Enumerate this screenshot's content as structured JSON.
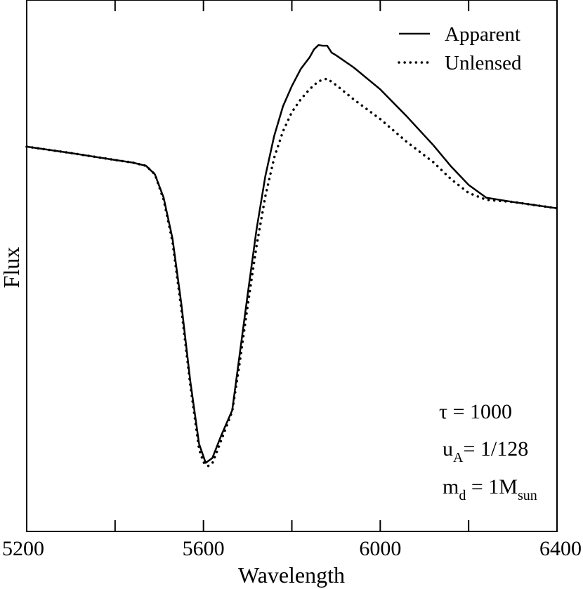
{
  "chart_data": {
    "type": "line",
    "xlabel": "Wavelength",
    "ylabel": "Flux",
    "xlim": [
      5200,
      6400
    ],
    "ylim": [
      0,
      1
    ],
    "x_ticks": [
      5200,
      5600,
      6000,
      6400
    ],
    "x_tick_labels": [
      "5200",
      "5600",
      "6000",
      "6400"
    ],
    "x_minor_ticks": [
      5400,
      5800,
      6200
    ],
    "y_tick_labels": [],
    "grid": false,
    "legend_position": "top-right",
    "series": [
      {
        "name": "Apparent",
        "style": "solid",
        "color": "#000000",
        "x": [
          5200,
          5300,
          5400,
          5440,
          5470,
          5490,
          5510,
          5530,
          5550,
          5570,
          5590,
          5605,
          5620,
          5640,
          5665,
          5680,
          5700,
          5720,
          5740,
          5760,
          5780,
          5800,
          5820,
          5840,
          5850,
          5860,
          5870,
          5880,
          5890,
          5900,
          5940,
          6000,
          6060,
          6120,
          6160,
          6200,
          6240,
          6300,
          6400
        ],
        "y": [
          0.724,
          0.712,
          0.699,
          0.694,
          0.688,
          0.672,
          0.628,
          0.551,
          0.428,
          0.284,
          0.165,
          0.129,
          0.138,
          0.18,
          0.228,
          0.321,
          0.446,
          0.568,
          0.669,
          0.744,
          0.8,
          0.838,
          0.87,
          0.892,
          0.907,
          0.915,
          0.914,
          0.914,
          0.901,
          0.896,
          0.873,
          0.832,
          0.781,
          0.727,
          0.687,
          0.652,
          0.628,
          0.62,
          0.608
        ]
      },
      {
        "name": "Unlensed",
        "style": "dotted",
        "color": "#000000",
        "x": [
          5200,
          5300,
          5400,
          5440,
          5470,
          5490,
          5510,
          5530,
          5550,
          5570,
          5590,
          5600,
          5610,
          5620,
          5640,
          5665,
          5680,
          5700,
          5720,
          5740,
          5760,
          5780,
          5800,
          5820,
          5840,
          5860,
          5880,
          5900,
          5940,
          6000,
          6060,
          6120,
          6160,
          6200,
          6240,
          6300,
          6400
        ],
        "y": [
          0.724,
          0.712,
          0.699,
          0.694,
          0.688,
          0.672,
          0.624,
          0.545,
          0.418,
          0.277,
          0.155,
          0.13,
          0.123,
          0.128,
          0.171,
          0.226,
          0.306,
          0.425,
          0.537,
          0.631,
          0.703,
          0.753,
          0.789,
          0.813,
          0.832,
          0.847,
          0.852,
          0.84,
          0.813,
          0.776,
          0.733,
          0.695,
          0.663,
          0.637,
          0.624,
          0.62,
          0.608
        ]
      }
    ],
    "annotations": {
      "tau": {
        "symbol": "τ",
        "text": " = 1000"
      },
      "u": {
        "main": "u",
        "sub": "A",
        "text": "= 1/128"
      },
      "m": {
        "main": "m",
        "sub": "d",
        "text": " = 1M",
        "sub2": "sun"
      }
    }
  }
}
